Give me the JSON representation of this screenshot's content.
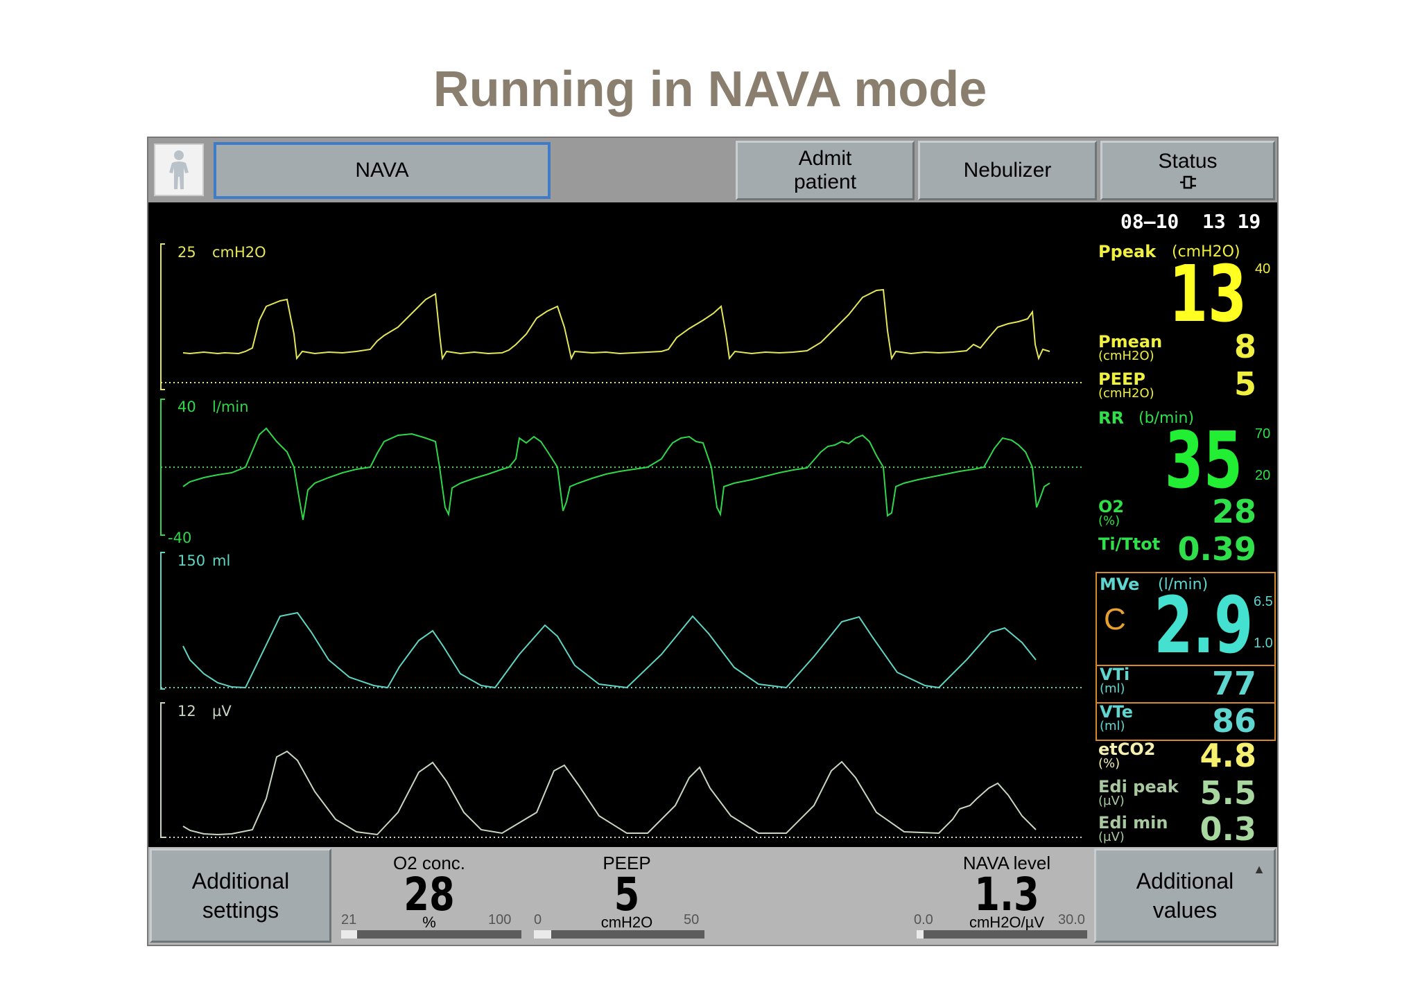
{
  "title": "Running in NAVA mode",
  "top_bar": {
    "patient_icon": "patient-figure-icon",
    "mode": "NAVA",
    "admit": [
      "Admit",
      "patient"
    ],
    "nebulizer": "Nebulizer",
    "status": "Status",
    "status_icon": "power-plug-icon"
  },
  "datetime": {
    "date": "08–10",
    "time": "13 19"
  },
  "waveforms": {
    "pressure": {
      "scale_top": "25",
      "unit": "cmH2O",
      "color": "#e6e65a"
    },
    "flow": {
      "scale_top": "40",
      "scale_bottom": "-40",
      "unit": "l/min",
      "color": "#2fd84a"
    },
    "volume": {
      "scale_top": "150",
      "unit": "ml",
      "color": "#5fd6c4"
    },
    "edi": {
      "scale_top": "12",
      "unit": "µV",
      "color": "#c8d8c0"
    }
  },
  "measured": {
    "ppeak": {
      "label": "Ppeak",
      "unit": "(cmH2O)",
      "value": "13",
      "alarm_high": "40"
    },
    "pmean": {
      "label": "Pmean",
      "unit": "(cmH2O)",
      "value": "8"
    },
    "peep": {
      "label": "PEEP",
      "unit": "(cmH2O)",
      "value": "5"
    },
    "rr": {
      "label": "RR",
      "unit": "(b/min)",
      "value": "35",
      "alarm_high": "70",
      "alarm_low": "20"
    },
    "o2": {
      "label": "O2",
      "unit": "(%)",
      "value": "28"
    },
    "ti_ttot": {
      "label": "Ti/Ttot",
      "value": "0.39"
    },
    "mve": {
      "label": "MVe",
      "unit": "(l/min)",
      "value": "2.9",
      "indicator": "C",
      "alarm_high": "6.5",
      "alarm_low": "1.0"
    },
    "vti": {
      "label": "VTi",
      "unit": "(ml)",
      "value": "77"
    },
    "vte": {
      "label": "VTe",
      "unit": "(ml)",
      "value": "86"
    },
    "etco2": {
      "label": "etCO2",
      "unit": "(%)",
      "value": "4.8"
    },
    "edi_peak": {
      "label": "Edi peak",
      "unit": "(µV)",
      "value": "5.5"
    },
    "edi_min": {
      "label": "Edi min",
      "unit": "(µV)",
      "value": "0.3"
    }
  },
  "bottom_bar": {
    "additional_settings": [
      "Additional",
      "settings"
    ],
    "additional_values": [
      "Additional",
      "values"
    ],
    "o2_conc": {
      "label": "O2 conc.",
      "value": "28",
      "unit": "%",
      "min": "21",
      "max": "100",
      "fraction": 0.09
    },
    "peep": {
      "label": "PEEP",
      "value": "5",
      "unit": "cmH2O",
      "min": "0",
      "max": "50",
      "fraction": 0.1
    },
    "nava_level": {
      "label": "NAVA level",
      "value": "1.3",
      "unit": "cmH2O/µV",
      "min": "0.0",
      "max": "30.0",
      "fraction": 0.04
    }
  }
}
